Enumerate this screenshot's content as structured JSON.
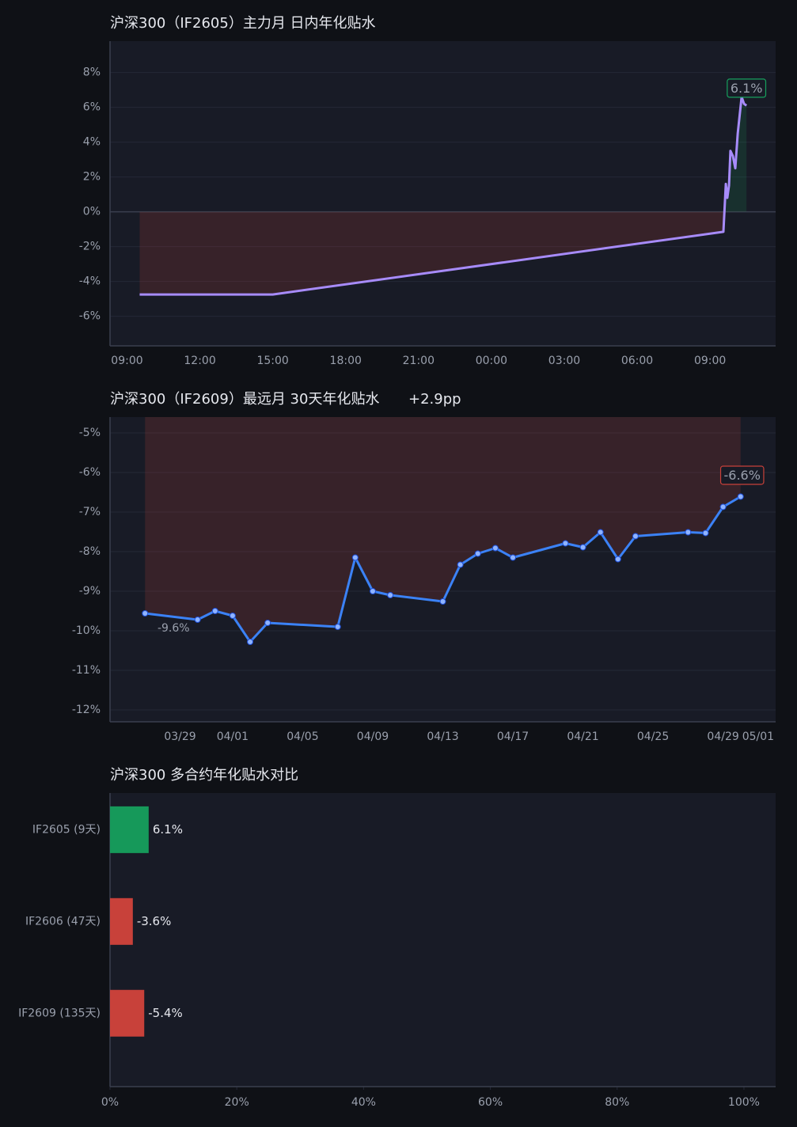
{
  "chart_data": [
    {
      "type": "line",
      "title": "沪深300（IF2605）主力月 日内年化贴水",
      "x": [
        9.52,
        15,
        33.55,
        33.65,
        33.71,
        33.78,
        33.84,
        33.94,
        34.04,
        34.14,
        34.3,
        34.4,
        34.5
      ],
      "series": [
        {
          "name": "IF2605",
          "color": "#a78bfa",
          "values": [
            -4.75,
            -4.75,
            -1.15,
            1.6,
            0.8,
            1.5,
            3.5,
            3.2,
            2.5,
            4.5,
            6.6,
            6.2,
            6.1
          ]
        }
      ],
      "annotations": [
        "6.1%"
      ],
      "xlim": [
        8.3,
        35.7
      ],
      "xticks": [
        {
          "value": 9,
          "label": "09:00"
        },
        {
          "value": 12,
          "label": "12:00"
        },
        {
          "value": 15,
          "label": "15:00"
        },
        {
          "value": 18,
          "label": "18:00"
        },
        {
          "value": 21,
          "label": "21:00"
        },
        {
          "value": 24,
          "label": "00:00"
        },
        {
          "value": 27,
          "label": "03:00"
        },
        {
          "value": 30,
          "label": "06:00"
        },
        {
          "value": 33,
          "label": "09:00"
        }
      ],
      "ylim": [
        -7.7,
        9.8
      ],
      "yticks": [
        {
          "value": -6,
          "label": "-6%"
        },
        {
          "value": -4,
          "label": "-4%"
        },
        {
          "value": -2,
          "label": "-2%"
        },
        {
          "value": 0,
          "label": "0%"
        },
        {
          "value": 2,
          "label": "2%"
        },
        {
          "value": 4,
          "label": "4%"
        },
        {
          "value": 6,
          "label": "6%"
        },
        {
          "value": 8,
          "label": "8%"
        }
      ],
      "fill_positive": "#16a05d",
      "fill_negative": "#c8413a",
      "markers": false,
      "grid": true
    },
    {
      "type": "line",
      "title": "沪深300（IF2609）最远月 30天年化贴水",
      "change_label": "+2.9pp",
      "x": [
        "03/27",
        "03/30",
        "03/31",
        "04/01",
        "04/02",
        "04/03",
        "04/07",
        "04/08",
        "04/09",
        "04/10",
        "04/13",
        "04/14",
        "04/15",
        "04/16",
        "04/17",
        "04/20",
        "04/21",
        "04/22",
        "04/23",
        "04/24",
        "04/27",
        "04/28",
        "04/29",
        "04/30"
      ],
      "series": [
        {
          "name": "IF2609",
          "color": "#3b82f6",
          "values": [
            -9.56,
            -9.72,
            -9.5,
            -9.62,
            -10.28,
            -9.8,
            -9.9,
            -8.15,
            -9.0,
            -9.1,
            -9.26,
            -8.33,
            -8.05,
            -7.91,
            -8.15,
            -7.79,
            -7.89,
            -7.51,
            -8.19,
            -7.61,
            -7.51,
            -7.53,
            -6.87,
            -6.61
          ]
        }
      ],
      "annotations": [
        "-9.6%",
        "-6.6%"
      ],
      "xlim": [
        "03/25",
        "05/02"
      ],
      "xticks": [
        "03/29",
        "04/01",
        "04/05",
        "04/09",
        "04/13",
        "04/17",
        "04/21",
        "04/25",
        "04/29",
        "05/01"
      ],
      "ylim": [
        -12.3,
        -4.6
      ],
      "yticks": [
        {
          "value": -12,
          "label": "-12%"
        },
        {
          "value": -11,
          "label": "-11%"
        },
        {
          "value": -10,
          "label": "-10%"
        },
        {
          "value": -9,
          "label": "-9%"
        },
        {
          "value": -8,
          "label": "-8%"
        },
        {
          "value": -7,
          "label": "-7%"
        },
        {
          "value": -6,
          "label": "-6%"
        },
        {
          "value": -5,
          "label": "-5%"
        }
      ],
      "fill_positive": "#16a05d",
      "fill_negative": "#c8413a",
      "markers": true,
      "grid": true
    },
    {
      "type": "barh",
      "title": "沪深300 多合约年化贴水对比",
      "categories": [
        "IF2605 (9天)",
        "IF2606 (47天)",
        "IF2609 (135天)"
      ],
      "values": [
        6.1,
        -3.6,
        -5.4
      ],
      "value_labels": [
        "6.1%",
        "-3.6%",
        "-5.4%"
      ],
      "color_positive": "#16995a",
      "color_negative": "#c8413a",
      "xlim": [
        0,
        105
      ],
      "xticks": [
        {
          "value": 0,
          "label": "0%"
        },
        {
          "value": 20,
          "label": "20%"
        },
        {
          "value": 40,
          "label": "40%"
        },
        {
          "value": 60,
          "label": "60%"
        },
        {
          "value": 80,
          "label": "80%"
        },
        {
          "value": 100,
          "label": "100%"
        }
      ]
    }
  ]
}
